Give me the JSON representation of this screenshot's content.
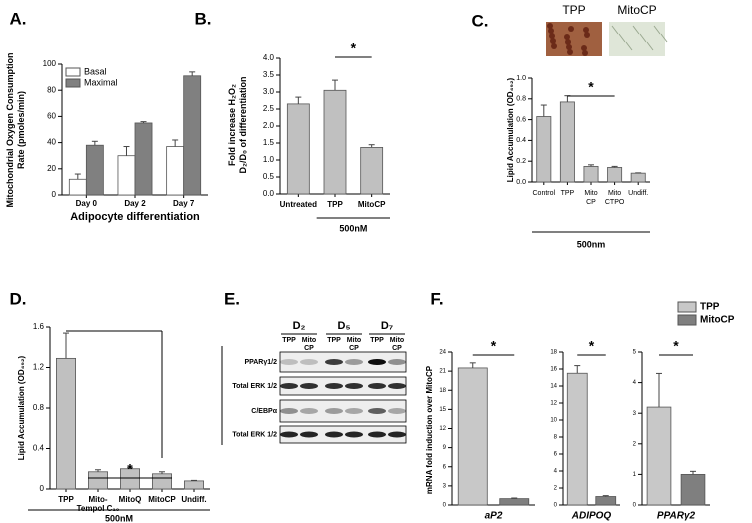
{
  "chart_data": [
    {
      "type": "bar",
      "label": "A.",
      "ylabel": [
        "Mitochondrial Oxygen Consumption",
        "Rate (pmoles/min)"
      ],
      "xlabel": "Adipocyte differentiation",
      "categories": [
        "Day 0",
        "Day 2",
        "Day 7"
      ],
      "series": [
        {
          "name": "Basal",
          "color": "#ffffff",
          "values": [
            12,
            30,
            37
          ],
          "errors": [
            4,
            7,
            5
          ]
        },
        {
          "name": "Maximal",
          "color": "#808080",
          "values": [
            38,
            55,
            91
          ],
          "errors": [
            3,
            1,
            3
          ]
        }
      ],
      "ylim": [
        0,
        100
      ],
      "yticks": [
        0,
        20,
        40,
        60,
        80,
        100
      ],
      "legend": "upper left"
    },
    {
      "type": "bar",
      "label": "B.",
      "ylabel": [
        "Fold increase H₂O₂",
        "D₂/D₀ of differentiation"
      ],
      "categories": [
        "Untreated",
        "TPP",
        "MitoCP"
      ],
      "values": [
        2.65,
        3.05,
        1.37
      ],
      "errors": [
        0.2,
        0.3,
        0.08
      ],
      "color": "#c0c0c0",
      "ylim": [
        0,
        4
      ],
      "yticks": [
        {
          "value": 0,
          "label": "0.0"
        },
        {
          "value": 0.5,
          "label": "0.5"
        },
        {
          "value": 1,
          "label": "1.0"
        },
        {
          "value": 1.5,
          "label": "1.5"
        },
        {
          "value": 2,
          "label": "2.0"
        },
        {
          "value": 2.5,
          "label": "2.5"
        },
        {
          "value": 3,
          "label": "3.0"
        },
        {
          "value": 3.5,
          "label": "3.5"
        },
        {
          "value": 4,
          "label": "4.0"
        }
      ],
      "annotation": "*",
      "group_label": "500nM"
    },
    {
      "type": "bar",
      "label": "C.",
      "image_labels": [
        "TPP",
        "MitoCP"
      ],
      "ylabel": [
        "Lipid Accumulation (OD₄₉₂)"
      ],
      "categories": [
        "Control",
        "TPP",
        [
          "Mito",
          "CP"
        ],
        [
          "Mito",
          "CTPO"
        ],
        "Undiff."
      ],
      "values": [
        0.63,
        0.77,
        0.15,
        0.14,
        0.085
      ],
      "errors": [
        0.11,
        0.06,
        0.015,
        0.01,
        0.003
      ],
      "color": "#c0c0c0",
      "ylim": [
        0,
        1
      ],
      "yticks": [
        {
          "value": 0,
          "label": "0.0"
        },
        0.2,
        0.4,
        0.6,
        0.8,
        {
          "value": 1,
          "label": "1.0"
        }
      ],
      "annotation": "*",
      "group_label": "500nm"
    },
    {
      "type": "bar",
      "label": "D.",
      "ylabel": [
        "Lipid Accumulation (OD₄₉₂)"
      ],
      "categories": [
        "TPP",
        [
          "Mito-",
          "Tempol C₁₀"
        ],
        "MitoQ",
        "MitoCP",
        "Undiff."
      ],
      "values": [
        1.29,
        0.17,
        0.2,
        0.15,
        0.08
      ],
      "errors": [
        0.25,
        0.02,
        0.01,
        0.02,
        0.005
      ],
      "color": "#c0c0c0",
      "ylim": [
        0,
        1.6
      ],
      "yticks": [
        0,
        0.4,
        0.8,
        1.2,
        1.6
      ],
      "annotation": "*",
      "group_label": "500nM"
    },
    {
      "type": "bar",
      "label": "F.",
      "ylabel": [
        "mRNA fold induction over MitoCP"
      ],
      "series": [
        {
          "name": "TPP",
          "color": "#c8c8c8"
        },
        {
          "name": "MitoCP",
          "color": "#7f7f7f"
        }
      ],
      "panels": [
        {
          "xlabel": "aP2",
          "values": [
            21.5,
            1.0
          ],
          "errors": [
            0.8,
            0.1
          ],
          "ylim": [
            0,
            24
          ],
          "yticks": [
            0,
            3,
            6,
            9,
            12,
            15,
            18,
            21,
            24
          ],
          "annotation": "*"
        },
        {
          "xlabel": "ADIPOQ",
          "values": [
            15.5,
            1.0
          ],
          "errors": [
            0.9,
            0.1
          ],
          "ylim": [
            0,
            18
          ],
          "yticks": [
            0,
            2,
            4,
            6,
            8,
            10,
            12,
            14,
            16,
            18
          ],
          "annotation": "*"
        },
        {
          "xlabel": "PPARγ2",
          "values": [
            3.2,
            1.0
          ],
          "errors": [
            1.1,
            0.1
          ],
          "ylim": [
            0,
            5
          ],
          "yticks": [
            0,
            1,
            2,
            3,
            4,
            5
          ],
          "annotation": "*"
        }
      ]
    }
  ],
  "blot": {
    "label": "E.",
    "days": [
      "D₂",
      "D₅",
      "D₇"
    ],
    "lanes": [
      "TPP",
      [
        "Mito",
        "CP"
      ],
      "TPP",
      [
        "Mito",
        "CP"
      ],
      "TPP",
      [
        "Mito",
        "CP"
      ]
    ],
    "rows": [
      "PPARγ1/2",
      "Total ERK 1/2",
      "C/EBPα",
      "Total ERK 1/2"
    ]
  }
}
